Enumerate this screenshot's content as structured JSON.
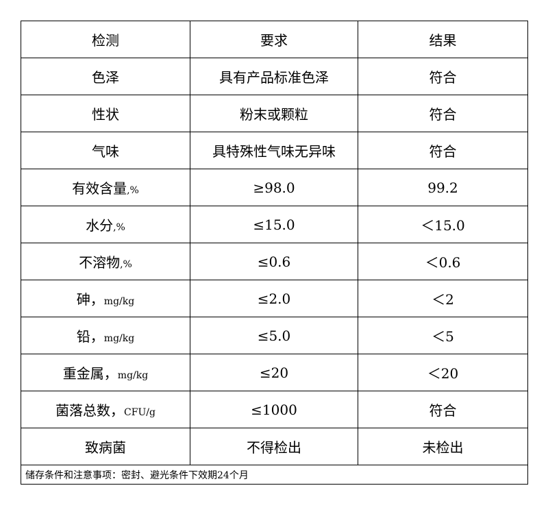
{
  "header": [
    "检测",
    "要求",
    "结果"
  ],
  "rows": [
    {
      "item": "色泽",
      "unit": "",
      "requirement": "具有产品标准色泽",
      "result": "符合"
    },
    {
      "item": "性状",
      "unit": "",
      "requirement": "粉末或颗粒",
      "result": "符合"
    },
    {
      "item": "气味",
      "unit": "",
      "requirement": "具特殊性气味无异味",
      "result": "符合"
    },
    {
      "item": "有效含量",
      "unit": ",%",
      "requirement": "≥98.0",
      "result": "99.2"
    },
    {
      "item": "水分",
      "unit": ",%",
      "requirement": "≤15.0",
      "result": "＜15.0"
    },
    {
      "item": "不溶物",
      "unit": ",%",
      "requirement": "≤0.6",
      "result": "＜0.6"
    },
    {
      "item": "砷，",
      "unit": "mg/kg",
      "requirement": "≤2.0",
      "result": "＜2"
    },
    {
      "item": "铅，",
      "unit": "mg/kg",
      "requirement": "≤5.0",
      "result": "＜5"
    },
    {
      "item": "重金属，",
      "unit": "mg/kg",
      "requirement": "≤20",
      "result": "＜20"
    },
    {
      "item": "菌落总数，",
      "unit": "CFU/g",
      "requirement": "≤1000",
      "result": "符合"
    },
    {
      "item": "致病菌",
      "unit": "",
      "requirement": "不得检出",
      "result": "未检出"
    }
  ],
  "footer": "储存条件和注意事项：密封、避光条件下效期24个月"
}
